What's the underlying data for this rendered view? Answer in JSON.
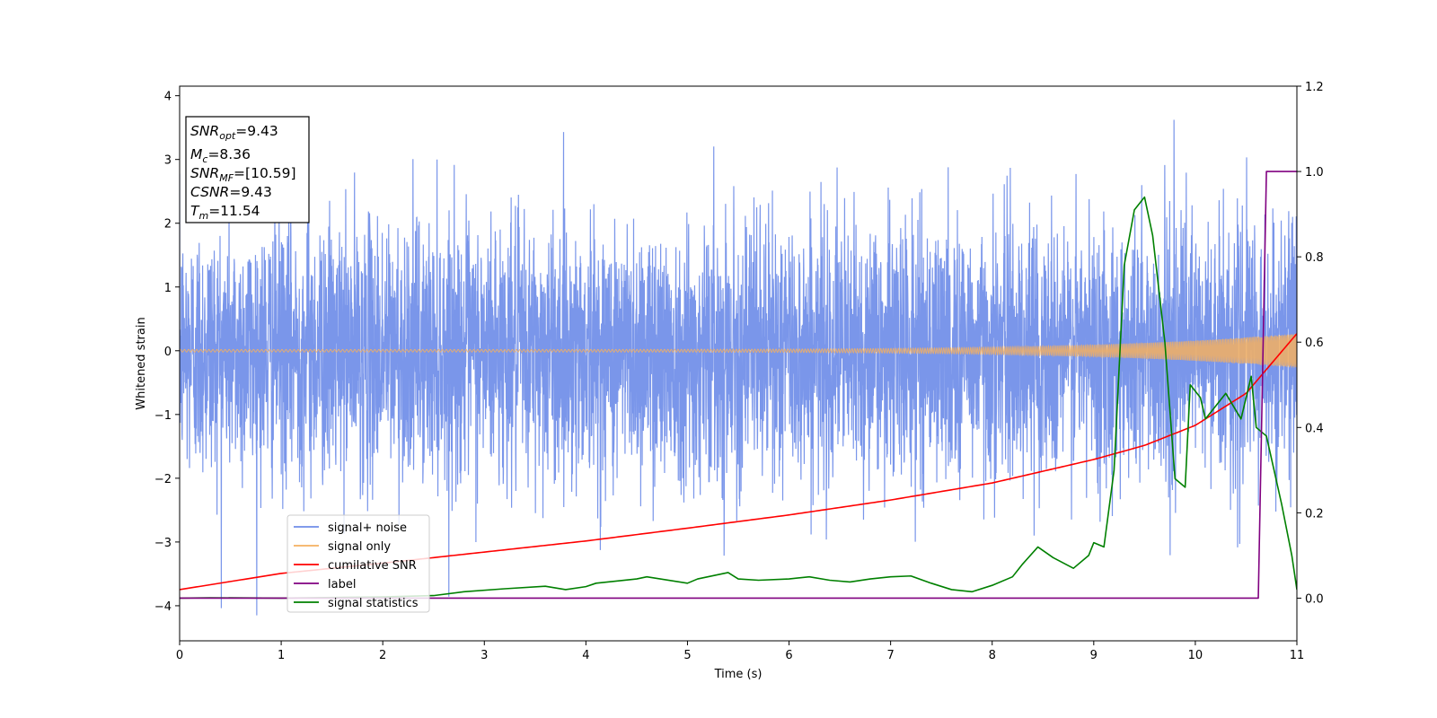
{
  "chart_data": {
    "type": "line",
    "xlabel": "Time (s)",
    "ylabel": "Whitened strain",
    "xlim": [
      0,
      11
    ],
    "ylim": [
      -4.55,
      4.15
    ],
    "y2lim": [
      -0.1,
      1.2
    ],
    "x_ticks": [
      "0",
      "1",
      "2",
      "3",
      "4",
      "5",
      "6",
      "7",
      "8",
      "9",
      "10",
      "11"
    ],
    "y_ticks": [
      "−4",
      "−3",
      "−2",
      "−1",
      "0",
      "1",
      "2",
      "3",
      "4"
    ],
    "y2_ticks": [
      "0.0",
      "0.2",
      "0.4",
      "0.6",
      "0.8",
      "1.0",
      "1.2"
    ],
    "grid": false,
    "legend_position": "lower-left",
    "annotation": {
      "lines": [
        {
          "label": "SNR",
          "sub": "opt",
          "value": "=9.43"
        },
        {
          "label": "M",
          "sub": "c",
          "value": "=8.36"
        },
        {
          "label": "SNR",
          "sub": "MF",
          "value": "=[10.59]"
        },
        {
          "label": "CSNR",
          "sub": "",
          "value": "=9.43"
        },
        {
          "label": "T",
          "sub": "m",
          "value": "=11.54"
        }
      ]
    },
    "series": [
      {
        "name": "signal+ noise",
        "axis": "left",
        "color": "#6f8de8",
        "kind": "noise",
        "typical_envelope": [
          -2.0,
          2.0
        ],
        "peak_max": 3.78,
        "peak_min": -4.15
      },
      {
        "name": "signal only",
        "axis": "left",
        "color": "#f5b060",
        "kind": "chirp",
        "amplitude_start": 0.02,
        "amplitude_end": 0.27
      },
      {
        "name": "cumilative SNR",
        "axis": "right",
        "color": "#ff0000",
        "x": [
          0,
          1,
          2,
          3,
          4,
          5,
          6,
          7,
          8,
          9,
          9.5,
          10,
          10.5,
          11
        ],
        "y": [
          0.02,
          0.058,
          0.082,
          0.108,
          0.134,
          0.164,
          0.195,
          0.23,
          0.27,
          0.325,
          0.358,
          0.405,
          0.48,
          0.62
        ]
      },
      {
        "name": "label",
        "axis": "right",
        "color": "#800080",
        "x": [
          0,
          10.62,
          10.7,
          11
        ],
        "y": [
          0.0,
          0.0,
          1.0,
          1.0
        ]
      },
      {
        "name": "signal statistics",
        "axis": "right",
        "color": "#008000",
        "x": [
          0,
          0.3,
          1,
          2,
          2.5,
          2.8,
          3.2,
          3.6,
          3.8,
          4.0,
          4.1,
          4.5,
          4.6,
          5.0,
          5.1,
          5.4,
          5.5,
          5.7,
          6.0,
          6.2,
          6.4,
          6.6,
          6.8,
          7.0,
          7.2,
          7.4,
          7.6,
          7.8,
          8.0,
          8.2,
          8.3,
          8.45,
          8.6,
          8.8,
          8.95,
          9.0,
          9.1,
          9.2,
          9.3,
          9.4,
          9.5,
          9.58,
          9.7,
          9.8,
          9.9,
          9.95,
          10.05,
          10.1,
          10.3,
          10.45,
          10.55,
          10.6,
          10.7,
          10.85,
          10.95,
          11.0
        ],
        "y": [
          0.0,
          0.001,
          0.0,
          0.003,
          0.006,
          0.015,
          0.022,
          0.028,
          0.02,
          0.027,
          0.035,
          0.045,
          0.05,
          0.035,
          0.045,
          0.06,
          0.045,
          0.042,
          0.045,
          0.05,
          0.042,
          0.038,
          0.045,
          0.05,
          0.052,
          0.035,
          0.02,
          0.015,
          0.03,
          0.05,
          0.08,
          0.12,
          0.095,
          0.07,
          0.1,
          0.13,
          0.12,
          0.3,
          0.78,
          0.91,
          0.94,
          0.85,
          0.6,
          0.28,
          0.26,
          0.5,
          0.47,
          0.42,
          0.48,
          0.42,
          0.52,
          0.4,
          0.38,
          0.22,
          0.1,
          0.02
        ]
      }
    ]
  }
}
